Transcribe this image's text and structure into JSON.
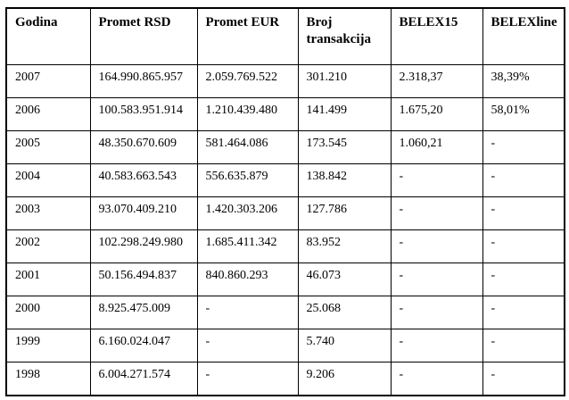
{
  "table": {
    "headers": [
      "Godina",
      "Promet RSD",
      "Promet EUR",
      "Broj transakcija",
      "BELEX15",
      "BELEXline"
    ],
    "rows": [
      [
        "2007",
        "164.990.865.957",
        "2.059.769.522",
        "301.210",
        "2.318,37",
        "38,39%"
      ],
      [
        "2006",
        "100.583.951.914",
        "1.210.439.480",
        "141.499",
        "1.675,20",
        "58,01%"
      ],
      [
        "2005",
        "48.350.670.609",
        "581.464.086",
        "173.545",
        "1.060,21",
        "-"
      ],
      [
        "2004",
        "40.583.663.543",
        "556.635.879",
        "138.842",
        "-",
        "-"
      ],
      [
        "2003",
        "93.070.409.210",
        "1.420.303.206",
        "127.786",
        "-",
        "-"
      ],
      [
        "2002",
        "102.298.249.980",
        "1.685.411.342",
        "83.952",
        "-",
        "-"
      ],
      [
        "2001",
        "50.156.494.837",
        "840.860.293",
        "46.073",
        "-",
        "-"
      ],
      [
        "2000",
        "8.925.475.009",
        "-",
        "25.068",
        "-",
        "-"
      ],
      [
        "1999",
        "6.160.024.047",
        "-",
        "5.740",
        "-",
        "-"
      ],
      [
        "1998",
        "6.004.271.574",
        "-",
        "9.206",
        "-",
        "-"
      ]
    ]
  },
  "colors": {
    "border": "#000000",
    "text": "#000000",
    "background": "#ffffff"
  },
  "chart_data": {
    "type": "table",
    "title": "",
    "columns": [
      "Godina",
      "Promet RSD",
      "Promet EUR",
      "Broj transakcija",
      "BELEX15",
      "BELEXline"
    ],
    "rows": [
      {
        "Godina": 2007,
        "Promet RSD": 164990865957,
        "Promet EUR": 2059769522,
        "Broj transakcija": 301210,
        "BELEX15": 2318.37,
        "BELEXline": "38,39%"
      },
      {
        "Godina": 2006,
        "Promet RSD": 100583951914,
        "Promet EUR": 1210439480,
        "Broj transakcija": 141499,
        "BELEX15": 1675.2,
        "BELEXline": "58,01%"
      },
      {
        "Godina": 2005,
        "Promet RSD": 48350670609,
        "Promet EUR": 581464086,
        "Broj transakcija": 173545,
        "BELEX15": 1060.21,
        "BELEXline": null
      },
      {
        "Godina": 2004,
        "Promet RSD": 40583663543,
        "Promet EUR": 556635879,
        "Broj transakcija": 138842,
        "BELEX15": null,
        "BELEXline": null
      },
      {
        "Godina": 2003,
        "Promet RSD": 93070409210,
        "Promet EUR": 1420303206,
        "Broj transakcija": 127786,
        "BELEX15": null,
        "BELEXline": null
      },
      {
        "Godina": 2002,
        "Promet RSD": 102298249980,
        "Promet EUR": 1685411342,
        "Broj transakcija": 83952,
        "BELEX15": null,
        "BELEXline": null
      },
      {
        "Godina": 2001,
        "Promet RSD": 50156494837,
        "Promet EUR": 840860293,
        "Broj transakcija": 46073,
        "BELEX15": null,
        "BELEXline": null
      },
      {
        "Godina": 2000,
        "Promet RSD": 8925475009,
        "Promet EUR": null,
        "Broj transakcija": 25068,
        "BELEX15": null,
        "BELEXline": null
      },
      {
        "Godina": 1999,
        "Promet RSD": 6160024047,
        "Promet EUR": null,
        "Broj transakcija": 5740,
        "BELEX15": null,
        "BELEXline": null
      },
      {
        "Godina": 1998,
        "Promet RSD": 6004271574,
        "Promet EUR": null,
        "Broj transakcija": 9206,
        "BELEX15": null,
        "BELEXline": null
      }
    ]
  }
}
